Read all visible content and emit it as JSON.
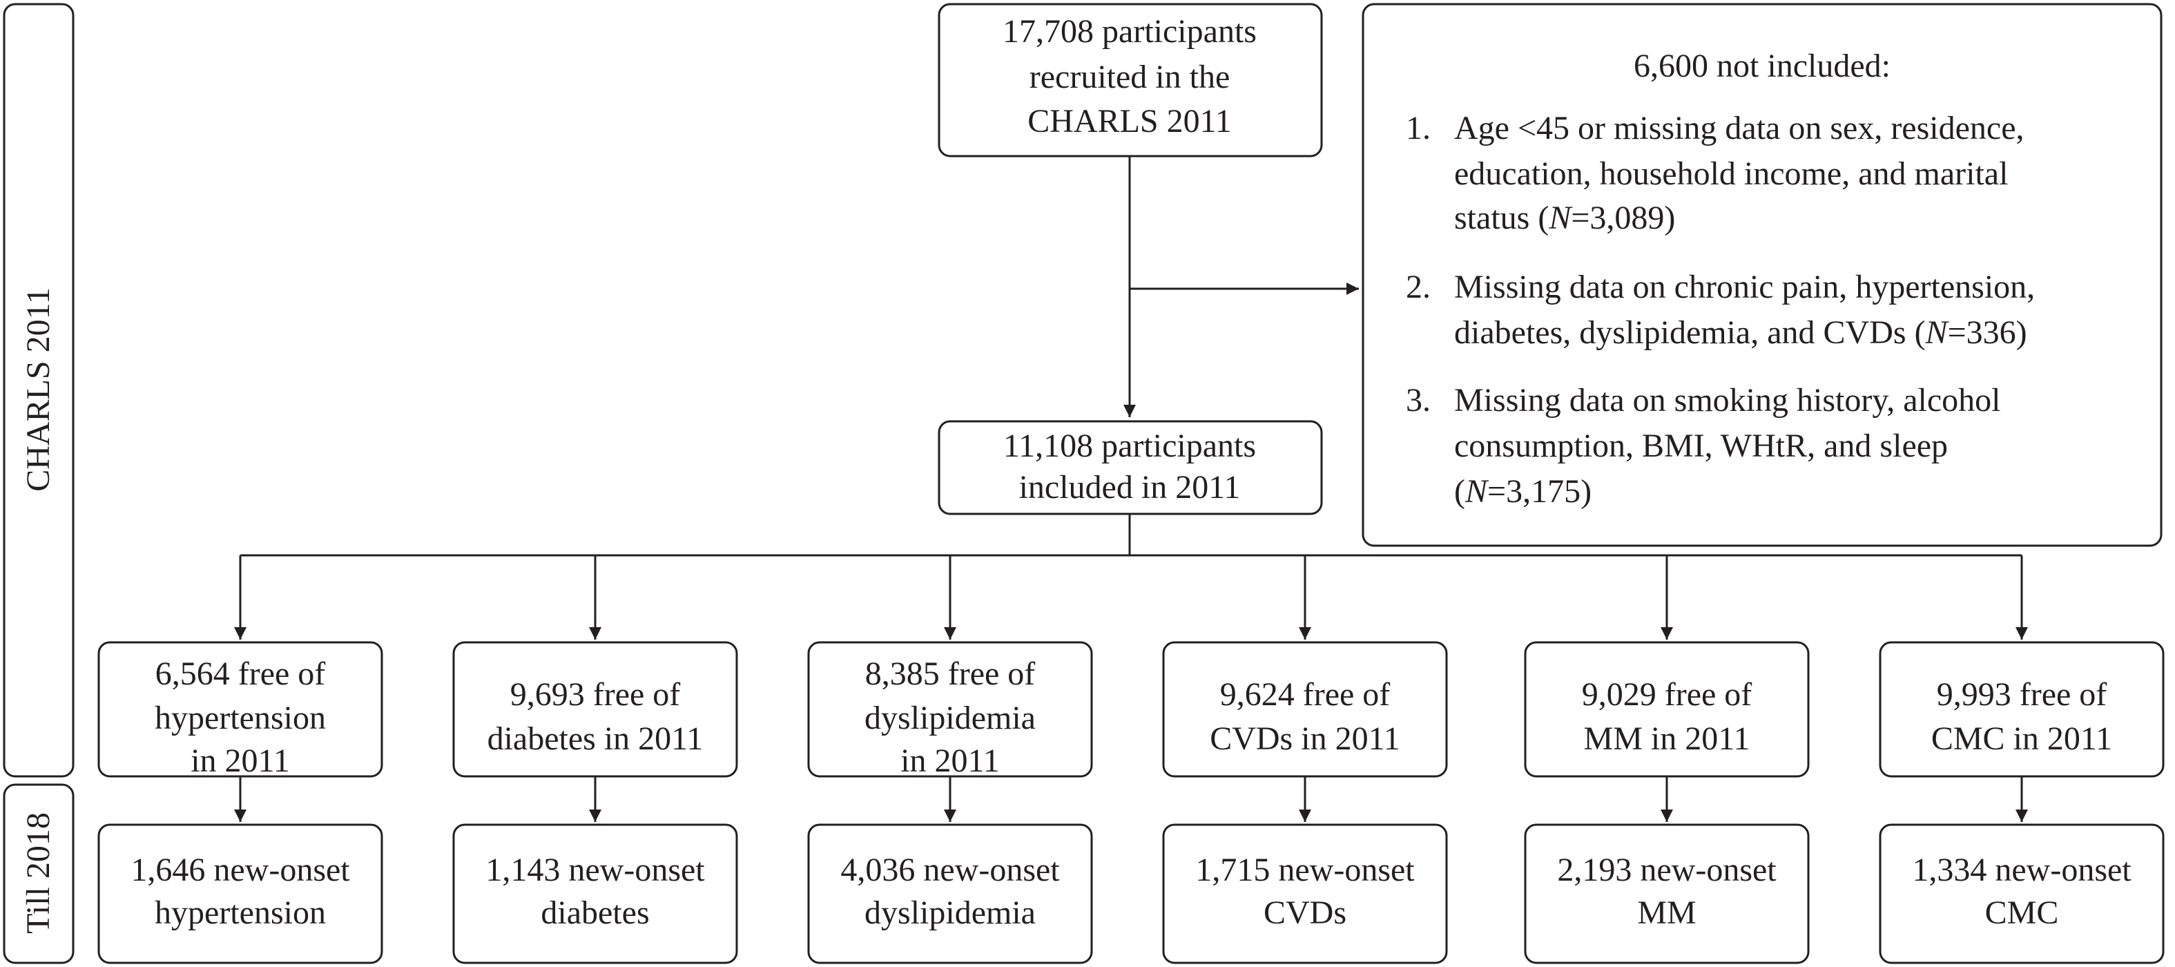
{
  "side_labels": [
    "CHARLS 2011",
    "Till 2018"
  ],
  "top_box": {
    "lines": [
      "17,708 participants",
      "recruited in the",
      "CHARLS 2011"
    ]
  },
  "exclusion_box": {
    "title": "6,600 not included:",
    "items": [
      {
        "marker": "1.",
        "lines": [
          [
            "Age <45 or missing data on sex, residence,"
          ],
          [
            "education, household income, and marital"
          ],
          [
            "status (",
            {
              "text": "N",
              "italic": true
            },
            "=3,089)"
          ]
        ]
      },
      {
        "marker": "2.",
        "lines": [
          [
            "Missing data on chronic pain,  hypertension,"
          ],
          [
            "diabetes, dyslipidemia, and CVDs (",
            {
              "text": "N",
              "italic": true
            },
            "=336)"
          ]
        ]
      },
      {
        "marker": "3.",
        "lines": [
          [
            "Missing data on smoking history, alcohol"
          ],
          [
            "consumption, BMI, WHtR, and sleep"
          ],
          [
            "(",
            {
              "text": "N",
              "italic": true
            },
            "=3,175)"
          ]
        ]
      }
    ]
  },
  "included_box": {
    "lines": [
      "11,108 participants",
      "included in 2011"
    ]
  },
  "columns": [
    {
      "baseline": [
        "6,564 free of",
        "hypertension",
        "in 2011"
      ],
      "outcome": [
        "1,646 new-onset",
        "hypertension"
      ]
    },
    {
      "baseline": [
        "9,693 free of",
        "diabetes in 2011"
      ],
      "outcome": [
        "1,143 new-onset",
        "diabetes"
      ]
    },
    {
      "baseline": [
        "8,385 free of",
        "dyslipidemia",
        "in 2011"
      ],
      "outcome": [
        "4,036 new-onset",
        "dyslipidemia"
      ]
    },
    {
      "baseline": [
        "9,624 free of",
        "CVDs in 2011"
      ],
      "outcome": [
        "1,715 new-onset",
        "CVDs"
      ]
    },
    {
      "baseline": [
        "9,029 free of",
        "MM in 2011"
      ],
      "outcome": [
        "2,193 new-onset",
        "MM"
      ]
    },
    {
      "baseline": [
        "9,993 free of",
        "CMC in 2011"
      ],
      "outcome": [
        "1,334 new-onset",
        "CMC"
      ]
    }
  ]
}
